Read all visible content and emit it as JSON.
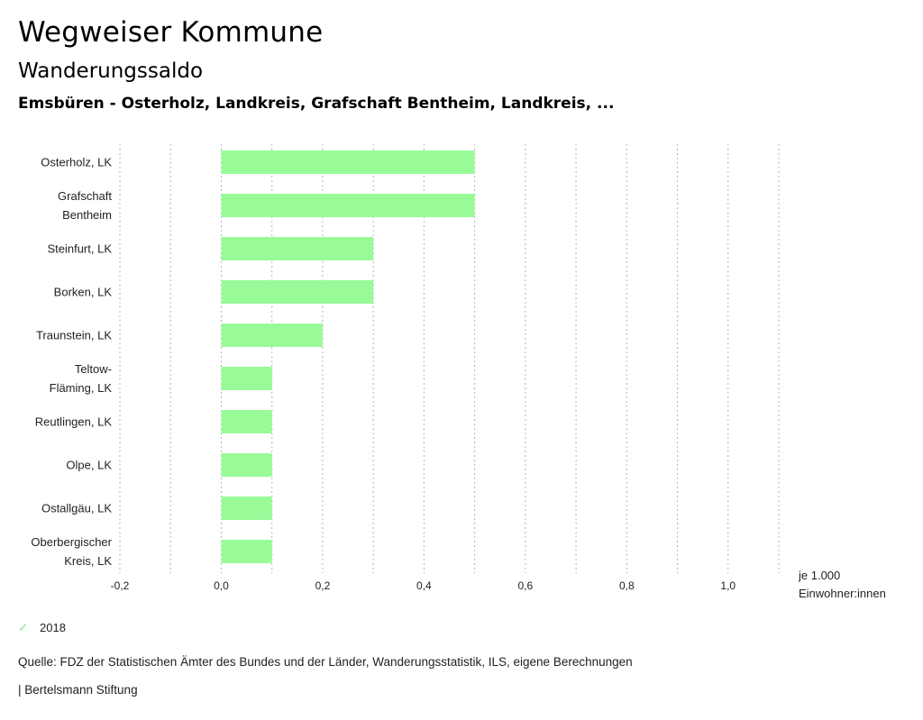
{
  "header": {
    "title": "Wegweiser Kommune",
    "subtitle": "Wanderungssaldo",
    "region": "Emsbüren - Osterholz, Landkreis, Grafschaft Bentheim, Landkreis, ..."
  },
  "chart_data": {
    "type": "bar",
    "orientation": "horizontal",
    "categories": [
      [
        "Osterholz, LK"
      ],
      [
        "Grafschaft",
        "Bentheim"
      ],
      [
        "Steinfurt, LK"
      ],
      [
        "Borken, LK"
      ],
      [
        "Traunstein, LK"
      ],
      [
        "Teltow-",
        "Fläming, LK"
      ],
      [
        "Reutlingen, LK"
      ],
      [
        "Olpe, LK"
      ],
      [
        "Ostallgäu, LK"
      ],
      [
        "Oberbergischer",
        "Kreis, LK"
      ]
    ],
    "series": [
      {
        "name": "2018",
        "values": [
          0.5,
          0.5,
          0.3,
          0.3,
          0.2,
          0.1,
          0.1,
          0.1,
          0.1,
          0.1
        ]
      }
    ],
    "xlim": [
      -0.2,
      1.1
    ],
    "ticks": [
      -0.2,
      0.0,
      0.2,
      0.4,
      0.6,
      0.8,
      1.0
    ],
    "tick_labels": [
      "-0,2",
      "0,0",
      "0,2",
      "0,4",
      "0,6",
      "0,8",
      "1,0"
    ],
    "minor_grid": [
      -0.1,
      0.1,
      0.3,
      0.5,
      0.7,
      0.9,
      1.1
    ],
    "unit_label": [
      "je 1.000",
      "Einwohner:innen"
    ],
    "bar_color": "#98fb98",
    "grid": true
  },
  "legend": {
    "label": "2018",
    "icon": "check-icon",
    "color": "#90ee90"
  },
  "footer": {
    "source": "Quelle: FDZ der Statistischen Ämter des Bundes und der Länder, Wanderungsstatistik, ILS, eigene Berechnungen",
    "brand": "| Bertelsmann Stiftung"
  }
}
